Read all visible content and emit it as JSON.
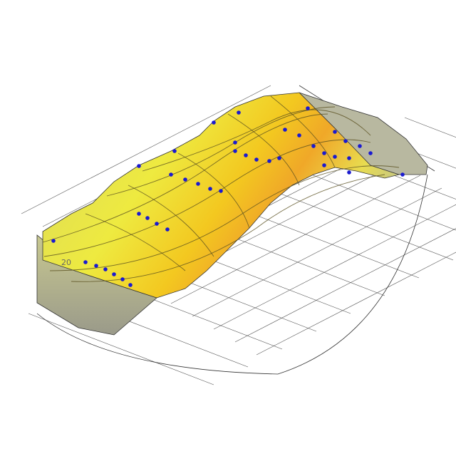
{
  "diagram": {
    "contour_label": "20",
    "colors": {
      "surface_light": "#e8e860",
      "surface_mid": "#f2e020",
      "surface_hot": "#f0a020",
      "surface_side": "#a8a890",
      "contour": "#5a5020",
      "grid": "#555555",
      "marker": "#1a1ad0"
    }
  }
}
